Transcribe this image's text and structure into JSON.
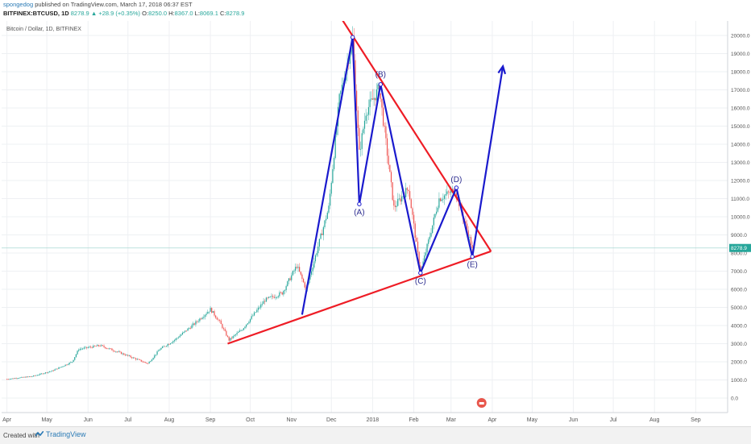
{
  "header": {
    "author": "spongedog",
    "published": "published on TradingView.com, March 17, 2018 06:37 EST",
    "symbol": "BITFINEX:BTCUSD, 1D",
    "last": "8278.9",
    "change": "+28.9 (+0.35%)",
    "o_label": "O:",
    "o": "8250.0",
    "h_label": "H:",
    "h": "8367.0",
    "l_label": "L:",
    "l": "8069.1",
    "c_label": "C:",
    "c": "8278.9"
  },
  "chart_title": "Bitcoin / Dollar, 1D, BITFINEX",
  "footer": {
    "created": "Created with",
    "brand": "TradingView"
  },
  "colors": {
    "up": "#26a69a",
    "down": "#ef5350",
    "trendline": "#ee1c25",
    "wave": "#1a1acd",
    "price_tag": "#26a69a"
  },
  "chart_data": {
    "type": "candlestick",
    "title": "Bitcoin / Dollar, 1D, BITFINEX",
    "x_ticks": [
      "Apr",
      "May",
      "Jun",
      "Jul",
      "Aug",
      "Sep",
      "Oct",
      "Nov",
      "Dec",
      "2018",
      "Feb",
      "Mar",
      "Apr",
      "May",
      "Jun",
      "Jul",
      "Aug",
      "Sep"
    ],
    "y_ticks": [
      "20000.0",
      "19000.0",
      "18000.0",
      "17000.0",
      "16000.0",
      "15000.0",
      "14000.0",
      "13000.0",
      "12000.0",
      "11000.0",
      "10000.0",
      "9000.0",
      "8000.0",
      "7000.0",
      "6000.0",
      "5000.0",
      "4000.0",
      "3000.0",
      "2000.0",
      "1000.0",
      "0.0"
    ],
    "ylim": [
      -800,
      20800
    ],
    "current_price": 8278.9,
    "current_price_label": "8278.9",
    "price_path": [
      [
        "2017-04-01",
        1050
      ],
      [
        "2017-04-20",
        1200
      ],
      [
        "2017-05-05",
        1500
      ],
      [
        "2017-05-20",
        2000
      ],
      [
        "2017-05-25",
        2700
      ],
      [
        "2017-06-10",
        2900
      ],
      [
        "2017-06-25",
        2500
      ],
      [
        "2017-07-16",
        1900
      ],
      [
        "2017-07-25",
        2700
      ],
      [
        "2017-08-05",
        3200
      ],
      [
        "2017-08-20",
        4100
      ],
      [
        "2017-09-01",
        4900
      ],
      [
        "2017-09-08",
        4200
      ],
      [
        "2017-09-15",
        3200
      ],
      [
        "2017-09-25",
        3800
      ],
      [
        "2017-10-12",
        5400
      ],
      [
        "2017-10-25",
        5800
      ],
      [
        "2017-11-05",
        7300
      ],
      [
        "2017-11-12",
        6000
      ],
      [
        "2017-11-20",
        8100
      ],
      [
        "2017-11-29",
        10500
      ],
      [
        "2017-12-07",
        16500
      ],
      [
        "2017-12-17",
        19800
      ],
      [
        "2017-12-22",
        13500
      ],
      [
        "2017-12-27",
        15800
      ],
      [
        "2018-01-06",
        17100
      ],
      [
        "2018-01-17",
        10500
      ],
      [
        "2018-01-28",
        11600
      ],
      [
        "2018-02-06",
        6900
      ],
      [
        "2018-02-20",
        11000
      ],
      [
        "2018-03-04",
        11500
      ],
      [
        "2018-03-17",
        8278.9
      ]
    ],
    "lines": [
      {
        "name": "support",
        "color": "#ee1c25",
        "points": [
          [
            "2017-09-14",
            3000
          ],
          [
            "2018-03-31",
            8100
          ]
        ]
      },
      {
        "name": "resistance",
        "color": "#ee1c25",
        "points": [
          [
            "2017-12-08",
            21000
          ],
          [
            "2018-03-31",
            8100
          ]
        ]
      },
      {
        "name": "wave",
        "color": "#1a1acd",
        "points": [
          [
            "2017-11-09",
            4600
          ],
          [
            "2017-12-17",
            19900
          ],
          [
            "2017-12-22",
            10700
          ],
          [
            "2018-01-07",
            17300
          ],
          [
            "2018-02-06",
            6900
          ],
          [
            "2018-03-05",
            11600
          ],
          [
            "2018-03-17",
            7800
          ],
          [
            "2018-04-09",
            18300
          ]
        ]
      }
    ],
    "annotations": [
      {
        "label": "(A)",
        "date": "2017-12-22",
        "value": 10300
      },
      {
        "label": "(B)",
        "date": "2018-01-07",
        "value": 17900
      },
      {
        "label": "(C)",
        "date": "2018-02-06",
        "value": 6500
      },
      {
        "label": "(D)",
        "date": "2018-03-05",
        "value": 12100
      },
      {
        "label": "(E)",
        "date": "2018-03-17",
        "value": 7400
      }
    ]
  }
}
